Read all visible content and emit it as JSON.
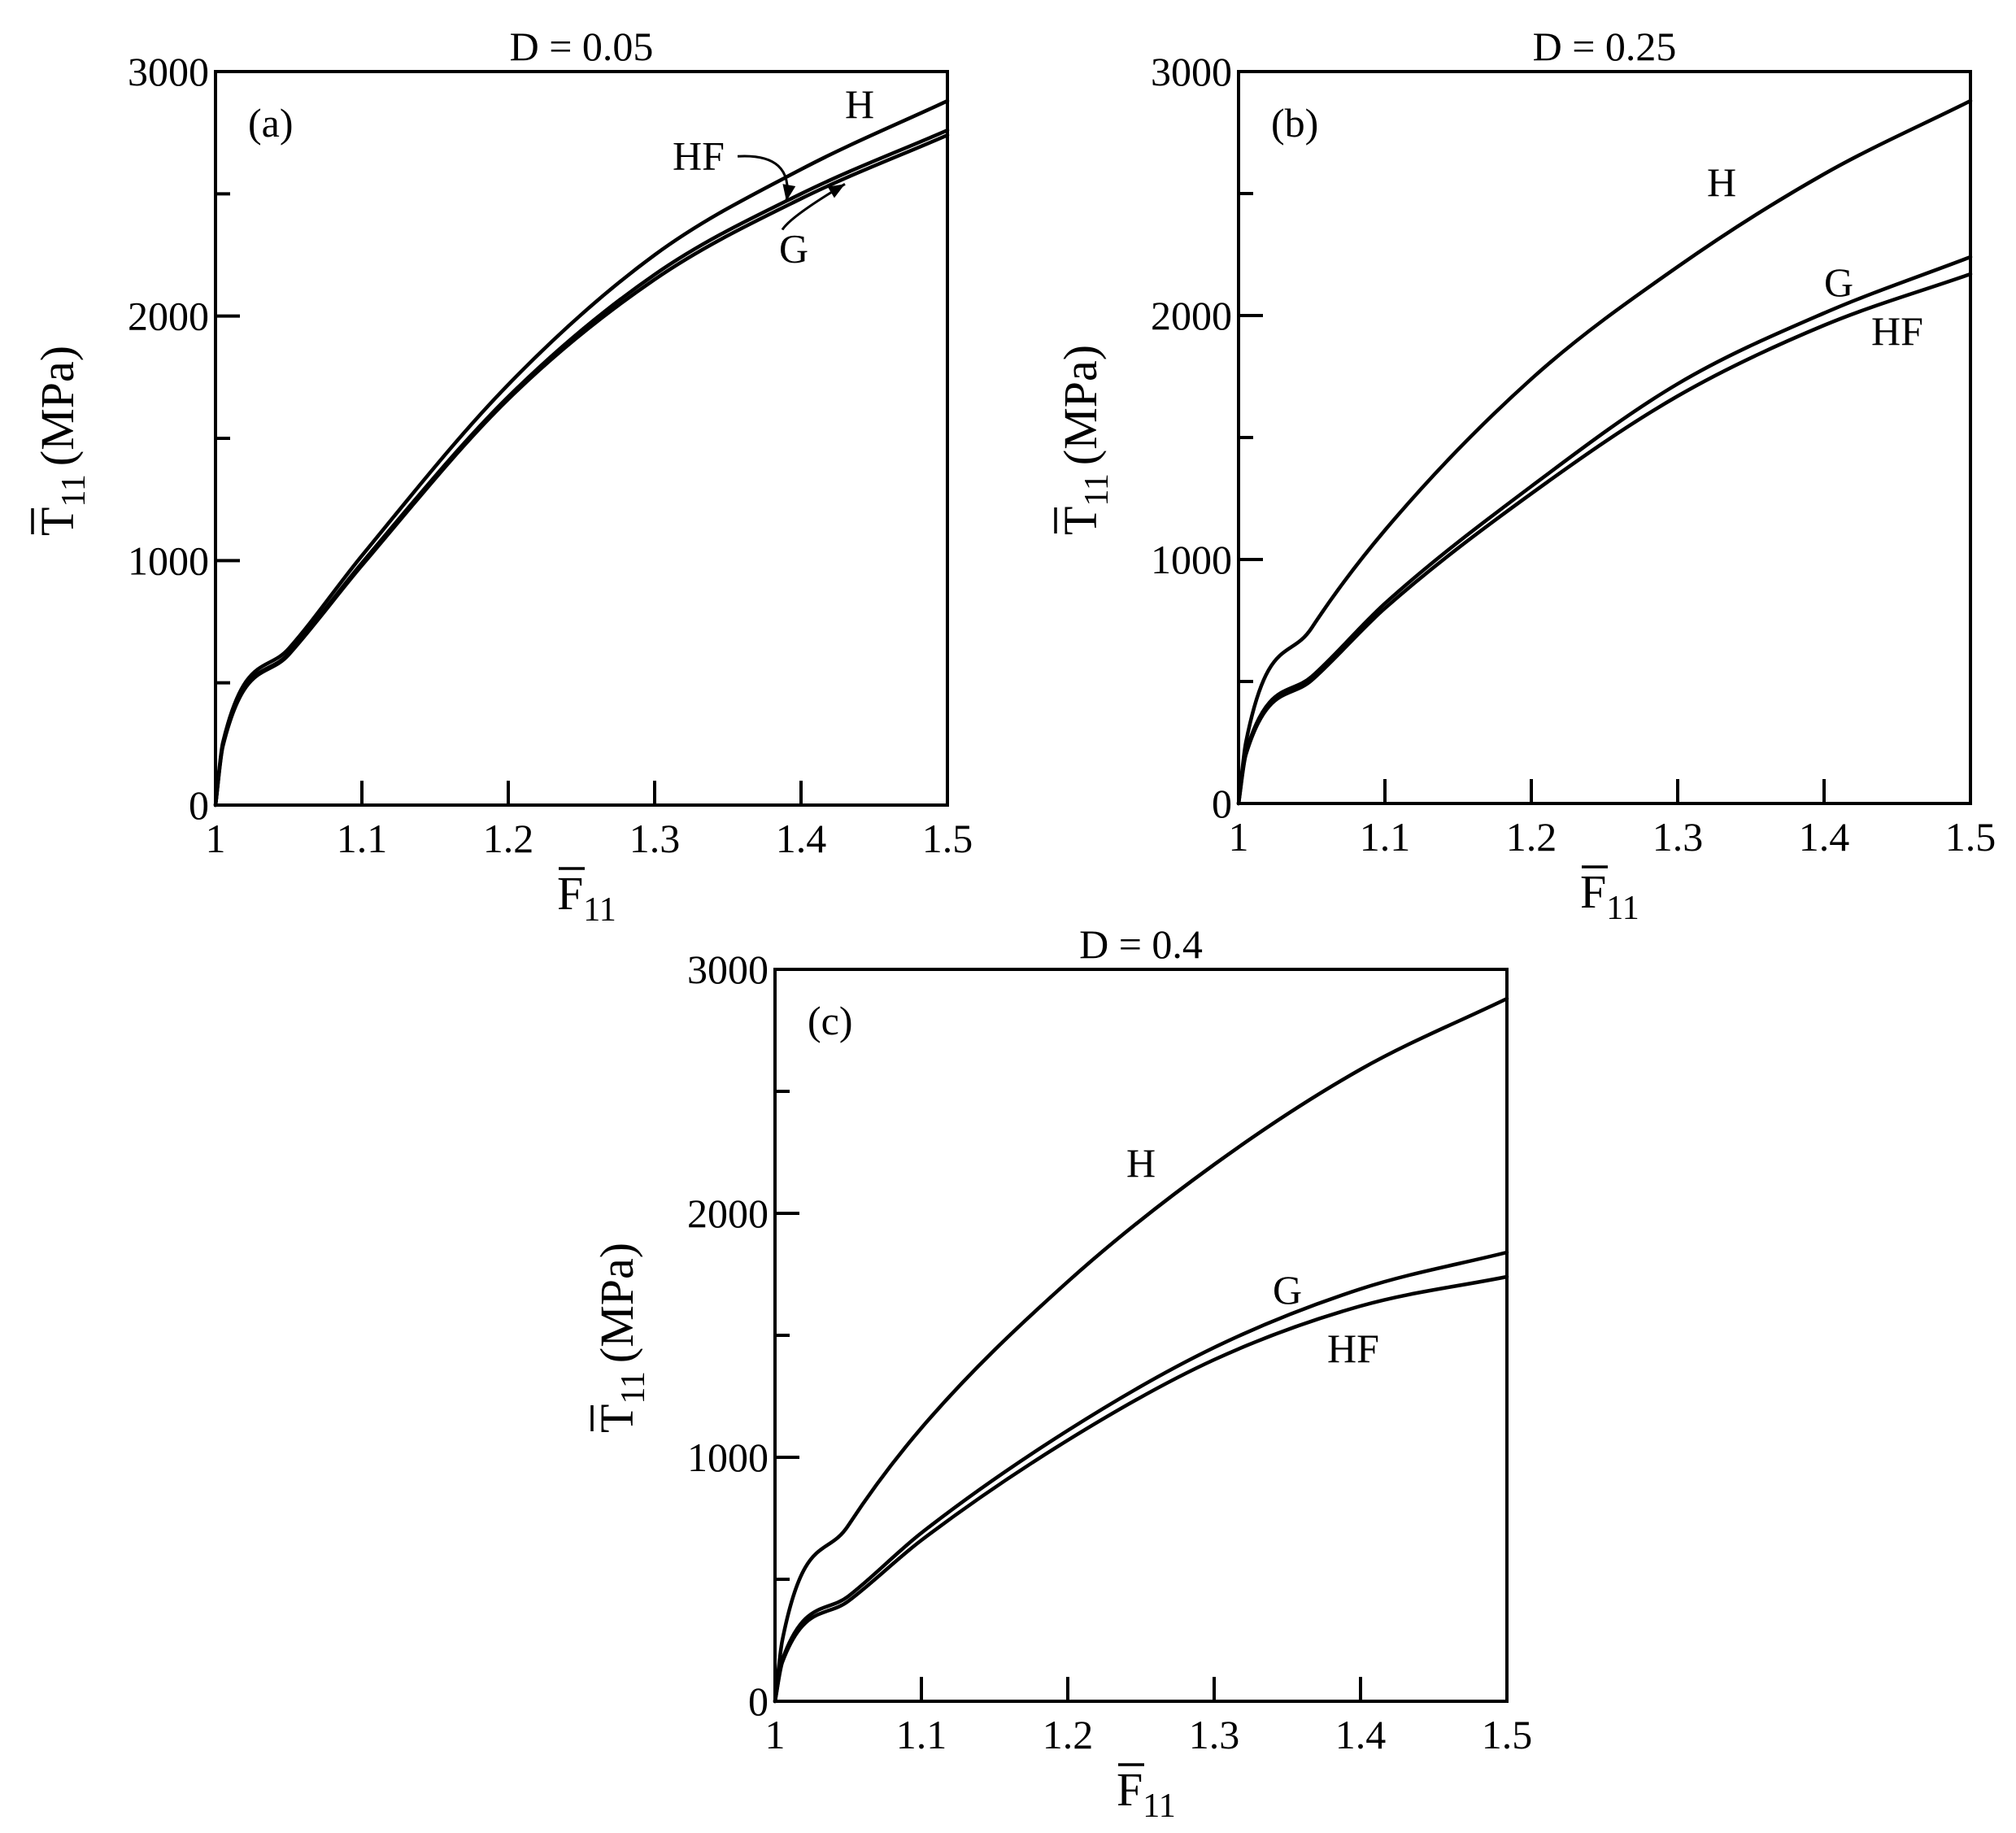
{
  "chart_data": [
    {
      "type": "line",
      "panel_label": "(a)",
      "title": "D = 0.05",
      "xlabel": {
        "symbol": "F",
        "subscript": "11"
      },
      "ylabel": {
        "symbol": "T",
        "subscript": "11",
        "unit": "(MPa)"
      },
      "xlim": [
        1,
        1.5
      ],
      "ylim": [
        0,
        3000
      ],
      "x_ticks": [
        1,
        1.1,
        1.2,
        1.3,
        1.4,
        1.5
      ],
      "x_tick_labels": [
        "1",
        "1.1",
        "1.2",
        "1.3",
        "1.4",
        "1.5"
      ],
      "y_ticks": [
        0,
        1000,
        2000,
        3000
      ],
      "y_tick_labels": [
        "0",
        "1000",
        "2000",
        "3000"
      ],
      "y_minor_ticks": [
        500,
        1500,
        2500
      ],
      "series": [
        {
          "name": "H",
          "x": [
            1,
            1.005,
            1.05,
            1.1,
            1.2,
            1.3,
            1.4,
            1.5
          ],
          "values": [
            0,
            255,
            640,
            1020,
            1720,
            2250,
            2600,
            2880
          ]
        },
        {
          "name": "HF",
          "x": [
            1,
            1.005,
            1.05,
            1.1,
            1.2,
            1.3,
            1.4,
            1.5
          ],
          "values": [
            0,
            245,
            620,
            990,
            1670,
            2170,
            2500,
            2760
          ]
        },
        {
          "name": "G",
          "x": [
            1,
            1.005,
            1.05,
            1.1,
            1.2,
            1.3,
            1.4,
            1.5
          ],
          "values": [
            0,
            240,
            615,
            980,
            1660,
            2150,
            2480,
            2740
          ]
        }
      ],
      "annotations": [
        {
          "text": "H",
          "x": 1.44,
          "y": 2810
        },
        {
          "text": "HF",
          "x": 1.33,
          "y": 2600,
          "arrow_to": [
            1.39,
            2470
          ]
        },
        {
          "text": "G",
          "x": 1.395,
          "y": 2220,
          "arrow_to": [
            1.43,
            2540
          ]
        }
      ]
    },
    {
      "type": "line",
      "panel_label": "(b)",
      "title": "D = 0.25",
      "xlabel": {
        "symbol": "F",
        "subscript": "11"
      },
      "ylabel": {
        "symbol": "T",
        "subscript": "11",
        "unit": "(MPa)"
      },
      "xlim": [
        1,
        1.5
      ],
      "ylim": [
        0,
        3000
      ],
      "x_ticks": [
        1,
        1.1,
        1.2,
        1.3,
        1.4,
        1.5
      ],
      "x_tick_labels": [
        "1",
        "1.1",
        "1.2",
        "1.3",
        "1.4",
        "1.5"
      ],
      "y_ticks": [
        0,
        1000,
        2000,
        3000
      ],
      "y_tick_labels": [
        "0",
        "1000",
        "2000",
        "3000"
      ],
      "y_minor_ticks": [
        500,
        1500,
        2500
      ],
      "series": [
        {
          "name": "H",
          "x": [
            1,
            1.005,
            1.05,
            1.1,
            1.2,
            1.3,
            1.4,
            1.5
          ],
          "values": [
            0,
            250,
            720,
            1120,
            1740,
            2200,
            2580,
            2880
          ]
        },
        {
          "name": "G",
          "x": [
            1,
            1.005,
            1.05,
            1.1,
            1.2,
            1.3,
            1.4,
            1.5
          ],
          "values": [
            0,
            210,
            520,
            820,
            1300,
            1720,
            2010,
            2240
          ]
        },
        {
          "name": "HF",
          "x": [
            1,
            1.005,
            1.05,
            1.1,
            1.2,
            1.3,
            1.4,
            1.5
          ],
          "values": [
            0,
            200,
            505,
            800,
            1270,
            1670,
            1960,
            2170
          ]
        }
      ],
      "annotations": [
        {
          "text": "H",
          "x": 1.33,
          "y": 2490
        },
        {
          "text": "G",
          "x": 1.41,
          "y": 2080
        },
        {
          "text": "HF",
          "x": 1.45,
          "y": 1880
        }
      ]
    },
    {
      "type": "line",
      "panel_label": "(c)",
      "title": "D = 0.4",
      "xlabel": {
        "symbol": "F",
        "subscript": "11"
      },
      "ylabel": {
        "symbol": "T",
        "subscript": "11",
        "unit": "(MPa)"
      },
      "xlim": [
        1,
        1.5
      ],
      "ylim": [
        0,
        3000
      ],
      "x_ticks": [
        1,
        1.1,
        1.2,
        1.3,
        1.4,
        1.5
      ],
      "x_tick_labels": [
        "1",
        "1.1",
        "1.2",
        "1.3",
        "1.4",
        "1.5"
      ],
      "y_ticks": [
        0,
        1000,
        2000,
        3000
      ],
      "y_tick_labels": [
        "0",
        "1000",
        "2000",
        "3000"
      ],
      "y_minor_ticks": [
        500,
        1500,
        2500
      ],
      "series": [
        {
          "name": "H",
          "x": [
            1,
            1.005,
            1.05,
            1.1,
            1.2,
            1.3,
            1.4,
            1.5
          ],
          "values": [
            0,
            250,
            720,
            1120,
            1720,
            2200,
            2590,
            2880
          ]
        },
        {
          "name": "G",
          "x": [
            1,
            1.005,
            1.05,
            1.1,
            1.2,
            1.3,
            1.4,
            1.5
          ],
          "values": [
            0,
            170,
            430,
            690,
            1110,
            1450,
            1690,
            1840
          ]
        },
        {
          "name": "HF",
          "x": [
            1,
            1.005,
            1.05,
            1.1,
            1.2,
            1.3,
            1.4,
            1.5
          ],
          "values": [
            0,
            160,
            410,
            660,
            1070,
            1400,
            1620,
            1740
          ]
        }
      ],
      "annotations": [
        {
          "text": "H",
          "x": 1.25,
          "y": 2150
        },
        {
          "text": "G",
          "x": 1.35,
          "y": 1630
        },
        {
          "text": "HF",
          "x": 1.395,
          "y": 1390
        }
      ]
    }
  ]
}
